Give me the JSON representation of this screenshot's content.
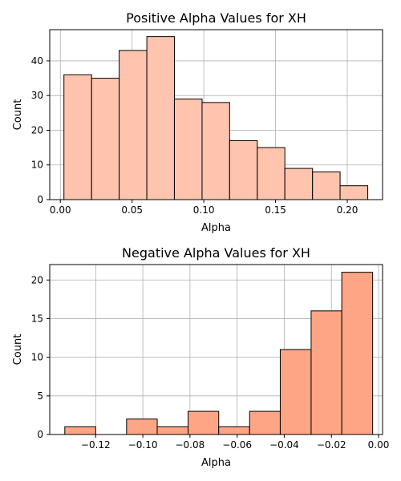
{
  "chart_data": [
    {
      "type": "bar",
      "title": "Positive Alpha Values for XH",
      "xlabel": "Alpha",
      "ylabel": "Count",
      "color": "#fec4ae",
      "edge_color": "#000000",
      "grid": true,
      "xlim": [
        -0.0074,
        0.2246
      ],
      "ylim": [
        0,
        49
      ],
      "xticks": [
        0.0,
        0.05,
        0.1,
        0.15,
        0.2
      ],
      "xtick_labels": [
        "0.00",
        "0.05",
        "0.10",
        "0.15",
        "0.20"
      ],
      "yticks": [
        0,
        10,
        20,
        30,
        40
      ],
      "ytick_labels": [
        "0",
        "10",
        "20",
        "30",
        "40"
      ],
      "bin_edges": [
        0.0025,
        0.0218,
        0.041,
        0.0603,
        0.0795,
        0.0988,
        0.118,
        0.1373,
        0.1565,
        0.1758,
        0.195,
        0.2143
      ],
      "values": [
        36,
        35,
        43,
        47,
        29,
        28,
        17,
        15,
        9,
        8,
        4
      ]
    },
    {
      "type": "bar",
      "title": "Negative Alpha Values for XH",
      "xlabel": "Alpha",
      "ylabel": "Count",
      "color": "#fda584",
      "edge_color": "#000000",
      "grid": true,
      "xlim": [
        -0.1395,
        0.0017
      ],
      "ylim": [
        0,
        22
      ],
      "xticks": [
        -0.12,
        -0.1,
        -0.08,
        -0.06,
        -0.04,
        -0.02,
        0.0
      ],
      "xtick_labels": [
        "−0.12",
        "−0.10",
        "−0.08",
        "−0.06",
        "−0.04",
        "−0.02",
        "0.00"
      ],
      "yticks": [
        0,
        5,
        10,
        15,
        20
      ],
      "ytick_labels": [
        "0",
        "5",
        "10",
        "15",
        "20"
      ],
      "bin_edges": [
        -0.1331,
        -0.12,
        -0.1069,
        -0.0939,
        -0.0808,
        -0.0678,
        -0.0547,
        -0.0417,
        -0.0286,
        -0.0156,
        -0.0025
      ],
      "values": [
        1,
        0,
        2,
        1,
        3,
        1,
        3,
        11,
        16,
        21
      ]
    }
  ]
}
